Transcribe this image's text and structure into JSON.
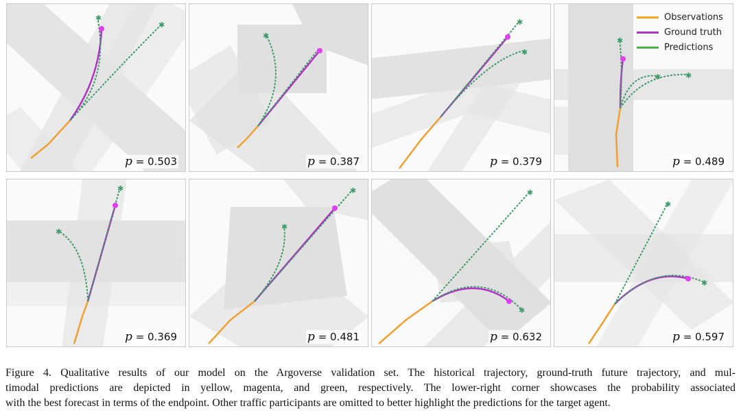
{
  "legend": {
    "items": [
      {
        "label": "Observations",
        "color": "#f5a623"
      },
      {
        "label": "Ground truth",
        "color": "#b030c8"
      },
      {
        "label": "Predictions",
        "color": "#4caf50"
      }
    ]
  },
  "colors": {
    "observation": "#f0a030",
    "ground_truth": "#b42fc4",
    "prediction": "#3d9a6a",
    "endpoint": "#e040f0",
    "road": "#d8d8d8"
  },
  "panels": [
    {
      "p_symbol": "p",
      "p_value": "= 0.503"
    },
    {
      "p_symbol": "p",
      "p_value": "= 0.387"
    },
    {
      "p_symbol": "p",
      "p_value": "= 0.379"
    },
    {
      "p_symbol": "p",
      "p_value": "= 0.489"
    },
    {
      "p_symbol": "p",
      "p_value": "= 0.369"
    },
    {
      "p_symbol": "p",
      "p_value": "= 0.481"
    },
    {
      "p_symbol": "p",
      "p_value": "= 0.632"
    },
    {
      "p_symbol": "p",
      "p_value": "= 0.597"
    }
  ],
  "caption": {
    "lines": [
      "Figure 4. Qualitative results of our model on the Argoverse validation set. The historical trajectory, ground-truth future trajectory, and mul-",
      "timodal predictions are depicted in yellow, magenta, and green, respectively. The lower-right corner showcases the probability associated",
      "with the best forecast in terms of the endpoint. Other traffic participants are omitted to better highlight the predictions for the target agent."
    ]
  }
}
